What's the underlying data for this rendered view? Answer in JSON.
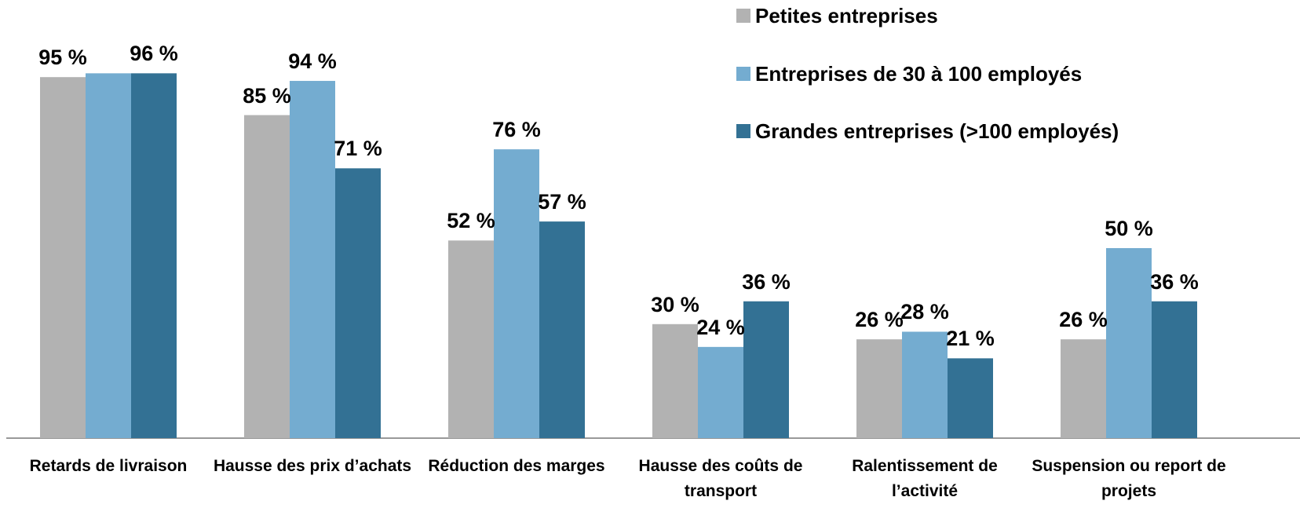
{
  "chart_data": {
    "type": "bar",
    "categories": [
      "Retards de livraison",
      "Hausse des prix d’achats",
      "Réduction des marges",
      "Hausse des coûts de transport",
      "Ralentissement de l’activité",
      "Suspension ou report de projets"
    ],
    "series": [
      {
        "name": "Petites entreprises",
        "color": "#b2b2b2",
        "values": [
          95,
          85,
          52,
          30,
          26,
          26
        ],
        "value_labels": [
          "95 %",
          "85 %",
          "52 %",
          "30 %",
          "26 %",
          "26 %"
        ]
      },
      {
        "name": "Entreprises de 30 à 100 employés",
        "color": "#74acd0",
        "values": [
          96,
          94,
          76,
          24,
          28,
          50
        ],
        "value_labels": [
          "",
          "94 %",
          "76 %",
          "24 %",
          "28 %",
          "50 %"
        ]
      },
      {
        "name": "Grandes entreprises (>100 employés)",
        "color": "#337194",
        "values": [
          96,
          71,
          57,
          36,
          21,
          36
        ],
        "value_labels": [
          "96 %",
          "71 %",
          "57 %",
          "36 %",
          "21 %",
          "36 %"
        ]
      }
    ],
    "ylim": [
      0,
      100
    ],
    "legend": "top-right"
  }
}
